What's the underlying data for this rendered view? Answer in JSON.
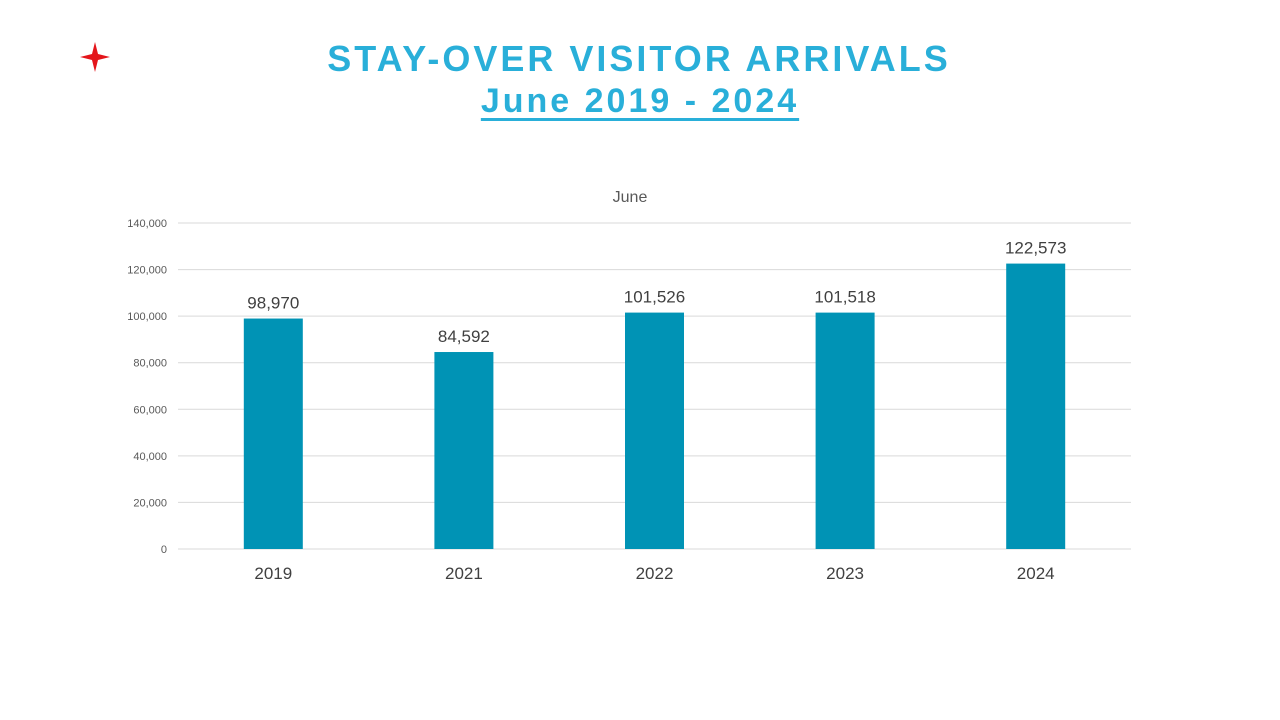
{
  "colors": {
    "title": "#29afd9",
    "bar": "#0093b5",
    "logo": "#e4151b",
    "grid": "#d9d9d9",
    "text": "#404040",
    "axis_text": "#595959"
  },
  "logo": {
    "icon": "red-four-point-star-icon"
  },
  "header": {
    "title": "STAY-OVER VISITOR ARRIVALS",
    "subtitle": "June 2019 - 2024"
  },
  "chart_data": {
    "type": "bar",
    "title": "June",
    "xlabel": "",
    "ylabel": "",
    "categories": [
      "2019",
      "2021",
      "2022",
      "2023",
      "2024"
    ],
    "values": [
      98970,
      84592,
      101526,
      101518,
      122573
    ],
    "data_labels": [
      "98,970",
      "84,592",
      "101,526",
      "101,518",
      "122,573"
    ],
    "ylim": [
      0,
      140000
    ],
    "yticks": [
      0,
      20000,
      40000,
      60000,
      80000,
      100000,
      120000,
      140000
    ],
    "ytick_labels": [
      "0",
      "20,000",
      "40,000",
      "60,000",
      "80,000",
      "100,000",
      "120,000",
      "140,000"
    ],
    "grid": true,
    "legend": "none"
  }
}
